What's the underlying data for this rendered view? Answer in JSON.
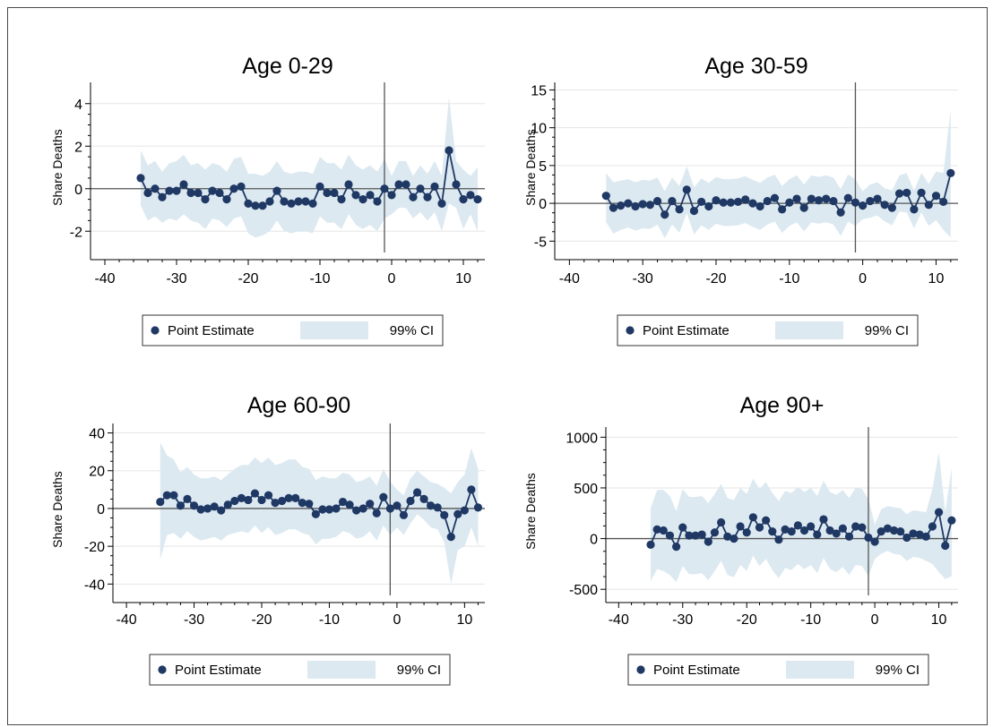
{
  "colors": {
    "point": "#1f3864",
    "ci_fill": "#dce9f1",
    "zero_line": "#555555",
    "event_line": "#555555",
    "grid": "#e6e6e6",
    "axis": "#000000"
  },
  "chart_data": [
    {
      "type": "line",
      "title": "Age 0-29",
      "xlabel": "",
      "ylabel": "Share Deaths",
      "xlim": [
        -42,
        13
      ],
      "ylim": [
        -3,
        5
      ],
      "xticks": [
        -40,
        -30,
        -20,
        -10,
        0,
        10
      ],
      "yticks": [
        -2,
        0,
        2,
        4
      ],
      "vline": -1,
      "grid": true,
      "legend_position": "bottom",
      "legend": [
        "Point Estimate",
        "99% CI"
      ],
      "x": [
        -35,
        -34,
        -33,
        -32,
        -31,
        -30,
        -29,
        -28,
        -27,
        -26,
        -25,
        -24,
        -23,
        -22,
        -21,
        -20,
        -19,
        -18,
        -17,
        -16,
        -15,
        -14,
        -13,
        -12,
        -11,
        -10,
        -9,
        -8,
        -7,
        -6,
        -5,
        -4,
        -3,
        -2,
        -1,
        0,
        1,
        2,
        3,
        4,
        5,
        6,
        7,
        8,
        9,
        10,
        11,
        12
      ],
      "series": [
        {
          "values": [
            0.5,
            -0.2,
            0.0,
            -0.4,
            -0.1,
            -0.1,
            0.2,
            -0.2,
            -0.2,
            -0.5,
            -0.1,
            -0.2,
            -0.5,
            0.0,
            0.1,
            -0.7,
            -0.8,
            -0.8,
            -0.6,
            -0.1,
            -0.6,
            -0.7,
            -0.6,
            -0.6,
            -0.7,
            0.1,
            -0.2,
            -0.2,
            -0.5,
            0.2,
            -0.3,
            -0.5,
            -0.3,
            -0.6,
            0.0,
            -0.3,
            0.2,
            0.2,
            -0.4,
            0.0,
            -0.4,
            0.1,
            -0.7,
            1.8,
            0.2,
            -0.5,
            -0.3,
            -0.5
          ]
        }
      ],
      "ci_lower": [
        -0.8,
        -1.5,
        -1.3,
        -1.6,
        -1.4,
        -1.5,
        -1.2,
        -1.5,
        -1.6,
        -1.9,
        -1.4,
        -1.5,
        -1.8,
        -1.4,
        -1.3,
        -2.1,
        -2.3,
        -2.2,
        -2.0,
        -1.5,
        -2.0,
        -2.1,
        -2.0,
        -2.0,
        -2.1,
        -1.3,
        -1.6,
        -1.6,
        -1.9,
        -1.2,
        -1.7,
        -1.9,
        -1.7,
        -2.0,
        -1.4,
        -1.2,
        -0.9,
        -0.9,
        -1.4,
        -1.1,
        -1.5,
        -1.1,
        -2.0,
        -0.7,
        -0.9,
        -1.9,
        -1.2,
        -2.0
      ],
      "ci_upper": [
        1.8,
        1.1,
        1.3,
        0.8,
        1.2,
        1.3,
        1.6,
        1.1,
        1.2,
        0.9,
        1.2,
        1.1,
        0.8,
        1.4,
        1.5,
        0.7,
        0.7,
        0.6,
        0.8,
        1.3,
        0.8,
        0.7,
        0.8,
        0.8,
        0.7,
        1.5,
        1.2,
        1.2,
        0.9,
        1.6,
        1.1,
        0.9,
        1.1,
        0.8,
        1.4,
        0.6,
        1.3,
        1.3,
        0.6,
        1.1,
        0.7,
        1.3,
        0.6,
        4.3,
        1.3,
        0.9,
        0.6,
        1.0
      ]
    },
    {
      "type": "line",
      "title": "Age 30-59",
      "xlabel": "",
      "ylabel": "Share Deaths",
      "xlim": [
        -42,
        13
      ],
      "ylim": [
        -6.5,
        16
      ],
      "xticks": [
        -40,
        -30,
        -20,
        -10,
        0,
        10
      ],
      "yticks": [
        -5,
        0,
        5,
        10,
        15
      ],
      "vline": -1,
      "grid": true,
      "legend_position": "bottom",
      "legend": [
        "Point Estimate",
        "99% CI"
      ],
      "x": [
        -35,
        -34,
        -33,
        -32,
        -31,
        -30,
        -29,
        -28,
        -27,
        -26,
        -25,
        -24,
        -23,
        -22,
        -21,
        -20,
        -19,
        -18,
        -17,
        -16,
        -15,
        -14,
        -13,
        -12,
        -11,
        -10,
        -9,
        -8,
        -7,
        -6,
        -5,
        -4,
        -3,
        -2,
        -1,
        0,
        1,
        2,
        3,
        4,
        5,
        6,
        7,
        8,
        9,
        10,
        11,
        12
      ],
      "series": [
        {
          "values": [
            1.0,
            -0.6,
            -0.3,
            0.0,
            -0.4,
            -0.1,
            -0.2,
            0.3,
            -1.5,
            0.3,
            -0.8,
            1.8,
            -1.0,
            0.2,
            -0.4,
            0.4,
            0.1,
            0.1,
            0.2,
            0.5,
            0.0,
            -0.4,
            0.3,
            0.7,
            -0.8,
            0.1,
            0.6,
            -0.6,
            0.6,
            0.4,
            0.6,
            0.3,
            -1.2,
            0.7,
            0.1,
            -0.3,
            0.3,
            0.6,
            -0.2,
            -0.6,
            1.3,
            1.4,
            -0.8,
            1.4,
            -0.2,
            1.0,
            0.2,
            4.0
          ]
        }
      ],
      "ci_lower": [
        -2.5,
        -4.0,
        -3.5,
        -3.2,
        -3.6,
        -3.3,
        -3.4,
        -2.8,
        -4.6,
        -2.8,
        -3.9,
        -1.3,
        -4.1,
        -2.9,
        -3.5,
        -2.7,
        -3.0,
        -3.0,
        -2.9,
        -2.6,
        -3.1,
        -3.5,
        -2.8,
        -2.4,
        -3.9,
        -3.0,
        -2.5,
        -3.7,
        -2.5,
        -2.7,
        -2.5,
        -2.8,
        -4.3,
        -2.4,
        -3.0,
        -2.1,
        -1.9,
        -1.6,
        -2.4,
        -2.9,
        -1.1,
        -1.2,
        -3.3,
        -1.2,
        -3.0,
        -2.2,
        -3.5,
        -4.5
      ],
      "ci_upper": [
        4.0,
        2.8,
        3.0,
        3.2,
        2.8,
        3.1,
        3.0,
        3.4,
        1.6,
        3.4,
        2.3,
        4.9,
        2.1,
        3.3,
        2.7,
        3.5,
        3.2,
        3.2,
        3.3,
        3.6,
        3.1,
        2.7,
        3.4,
        3.8,
        2.3,
        3.2,
        3.7,
        2.5,
        3.7,
        3.5,
        3.7,
        3.4,
        1.9,
        3.8,
        3.2,
        1.6,
        2.5,
        2.8,
        2.0,
        1.7,
        3.7,
        4.0,
        1.7,
        4.0,
        2.6,
        4.2,
        4.0,
        12.5
      ]
    },
    {
      "type": "line",
      "title": "Age 60-90",
      "xlabel": "",
      "ylabel": "Share Deaths",
      "xlim": [
        -42,
        13
      ],
      "ylim": [
        -46,
        45
      ],
      "xticks": [
        -40,
        -30,
        -20,
        -10,
        0,
        10
      ],
      "yticks": [
        -40,
        -20,
        0,
        20,
        40
      ],
      "vline": -1,
      "grid": true,
      "legend_position": "bottom",
      "legend": [
        "Point Estimate",
        "99% CI"
      ],
      "x": [
        -35,
        -34,
        -33,
        -32,
        -31,
        -30,
        -29,
        -28,
        -27,
        -26,
        -25,
        -24,
        -23,
        -22,
        -21,
        -20,
        -19,
        -18,
        -17,
        -16,
        -15,
        -14,
        -13,
        -12,
        -11,
        -10,
        -9,
        -8,
        -7,
        -6,
        -5,
        -4,
        -3,
        -2,
        -1,
        0,
        1,
        2,
        3,
        4,
        5,
        6,
        7,
        8,
        9,
        10,
        11,
        12
      ],
      "series": [
        {
          "values": [
            3.5,
            7.0,
            7.0,
            1.5,
            5.0,
            1.5,
            -0.5,
            0.0,
            1.0,
            -1.0,
            2.0,
            4.0,
            5.5,
            4.5,
            8.0,
            4.5,
            7.0,
            3.0,
            4.0,
            5.5,
            5.5,
            3.0,
            2.5,
            -3.0,
            -0.5,
            -0.5,
            0.0,
            3.5,
            2.0,
            -1.0,
            0.0,
            2.5,
            -2.5,
            6.0,
            0.0,
            1.5,
            -3.5,
            4.0,
            8.5,
            5.0,
            1.5,
            0.5,
            -3.5,
            -15.0,
            -3.0,
            -1.0,
            10.0,
            0.5
          ]
        }
      ],
      "ci_lower": [
        -27,
        -14,
        -13,
        -16,
        -12,
        -15,
        -17,
        -16,
        -15,
        -17,
        -14,
        -13,
        -12,
        -13,
        -9,
        -13,
        -10,
        -14,
        -13,
        -11,
        -11,
        -13,
        -14,
        -19,
        -16,
        -16,
        -15,
        -12,
        -13,
        -16,
        -15,
        -12,
        -17,
        -9,
        -14,
        -10,
        -14,
        -8,
        -3,
        -6,
        -10,
        -11,
        -18,
        -40,
        -22,
        -20,
        -10,
        -20
      ],
      "ci_upper": [
        35,
        28,
        26,
        19,
        22,
        18,
        16,
        16,
        17,
        15,
        18,
        21,
        23,
        23,
        27,
        24,
        27,
        23,
        24,
        26,
        26,
        22,
        21,
        15,
        17,
        16,
        16,
        19,
        18,
        14,
        15,
        17,
        12,
        21,
        14,
        10,
        7,
        16,
        20,
        17,
        14,
        13,
        11,
        8,
        14,
        18,
        32,
        21
      ]
    },
    {
      "type": "line",
      "title": "Age 90+",
      "xlabel": "",
      "ylabel": "Share Deaths",
      "xlim": [
        -42,
        13
      ],
      "ylim": [
        -560,
        1100
      ],
      "xticks": [
        -40,
        -30,
        -20,
        -10,
        0,
        10
      ],
      "yticks": [
        -500,
        0,
        500,
        1000
      ],
      "vline": -1,
      "grid": true,
      "legend_position": "bottom",
      "legend": [
        "Point Estimate",
        "99% CI"
      ],
      "x": [
        -35,
        -34,
        -33,
        -32,
        -31,
        -30,
        -29,
        -28,
        -27,
        -26,
        -25,
        -24,
        -23,
        -22,
        -21,
        -20,
        -19,
        -18,
        -17,
        -16,
        -15,
        -14,
        -13,
        -12,
        -11,
        -10,
        -9,
        -8,
        -7,
        -6,
        -5,
        -4,
        -3,
        -2,
        -1,
        0,
        1,
        2,
        3,
        4,
        5,
        6,
        7,
        8,
        9,
        10,
        11,
        12
      ],
      "series": [
        {
          "values": [
            -60,
            90,
            80,
            30,
            -80,
            110,
            30,
            30,
            40,
            -30,
            60,
            160,
            20,
            0,
            120,
            60,
            210,
            110,
            180,
            70,
            -10,
            90,
            70,
            130,
            80,
            120,
            40,
            190,
            80,
            50,
            100,
            20,
            120,
            110,
            10,
            -30,
            70,
            100,
            80,
            70,
            10,
            50,
            40,
            20,
            120,
            260,
            -70,
            180
          ]
        }
      ],
      "ci_lower": [
        -420,
        -300,
        -320,
        -360,
        -430,
        -270,
        -350,
        -350,
        -340,
        -410,
        -320,
        -220,
        -360,
        -380,
        -260,
        -320,
        -170,
        -270,
        -200,
        -310,
        -390,
        -290,
        -310,
        -250,
        -300,
        -260,
        -340,
        -190,
        -300,
        -330,
        -280,
        -360,
        -260,
        -270,
        -370,
        -200,
        -150,
        -120,
        -150,
        -160,
        -220,
        -180,
        -190,
        -220,
        -250,
        -330,
        -400,
        -370
      ],
      "ci_upper": [
        300,
        480,
        480,
        420,
        270,
        490,
        410,
        410,
        420,
        350,
        440,
        540,
        400,
        380,
        500,
        440,
        590,
        490,
        560,
        450,
        370,
        470,
        450,
        510,
        460,
        500,
        420,
        570,
        460,
        430,
        480,
        400,
        500,
        490,
        390,
        140,
        290,
        320,
        310,
        300,
        240,
        280,
        270,
        260,
        490,
        850,
        260,
        700
      ]
    }
  ]
}
